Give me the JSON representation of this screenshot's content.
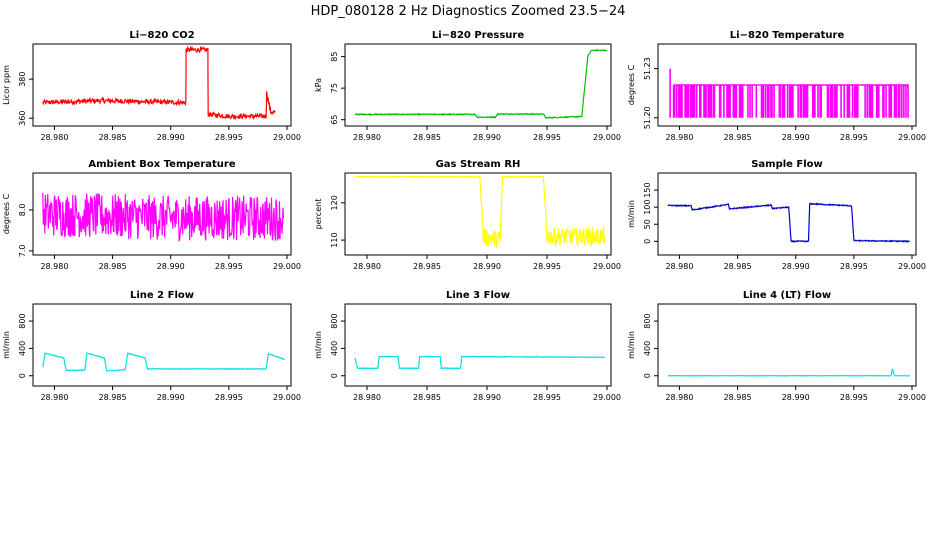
{
  "figure_title": "HDP_080128  2 Hz Diagnostics Zoomed 23.5−24",
  "chart_data": [
    {
      "type": "line",
      "title": "Li−820 CO2",
      "ylabel": "Licor ppm",
      "color": "#ff0000",
      "ylim": [
        356,
        398
      ],
      "yticks": [
        360,
        380
      ],
      "ytick_labels": [
        "360",
        "380"
      ],
      "xlim": [
        28.9785,
        29.0
      ],
      "xticks": [
        28.98,
        28.985,
        28.99,
        28.995,
        29.0
      ],
      "xtick_labels": [
        "28.980",
        "28.985",
        "28.990",
        "28.995",
        "29.000"
      ],
      "series": [
        {
          "x": [
            28.979,
            28.984,
            28.9913,
            28.99132,
            28.9932,
            28.99322,
            28.995,
            28.9982,
            28.99825,
            28.9986,
            28.999
          ],
          "y": [
            368,
            369,
            368,
            395,
            395,
            362,
            361,
            361,
            373,
            363,
            363
          ]
        }
      ]
    },
    {
      "type": "line",
      "title": "Li−820 Pressure",
      "ylabel": "kPa",
      "color": "#00c000",
      "ylim": [
        63,
        89
      ],
      "yticks": [
        65,
        75,
        85
      ],
      "ytick_labels": [
        "65",
        "75",
        "85"
      ],
      "xlim": [
        28.9785,
        29.0
      ],
      "xticks": [
        28.98,
        28.985,
        28.99,
        28.995,
        29.0
      ],
      "xtick_labels": [
        "28.980",
        "28.985",
        "28.990",
        "28.995",
        "29.000"
      ],
      "series": [
        {
          "x": [
            28.979,
            28.989,
            28.9892,
            28.9907,
            28.9909,
            28.9947,
            28.9949,
            28.9979,
            28.9984,
            28.9987,
            29.0
          ],
          "y": [
            66.7,
            66.7,
            65.8,
            65.8,
            66.8,
            66.8,
            65.6,
            66,
            85,
            87,
            87
          ]
        }
      ]
    },
    {
      "type": "line",
      "title": "Li−820 Temperature",
      "ylabel": "degrees C",
      "color": "#ff00ff",
      "ylim": [
        51.195,
        51.245
      ],
      "yticks": [
        51.2,
        51.23
      ],
      "ytick_labels": [
        "51.20",
        "51.23"
      ],
      "xlim": [
        28.9785,
        29.0
      ],
      "xticks": [
        28.98,
        28.985,
        28.99,
        28.995,
        29.0
      ],
      "xtick_labels": [
        "28.980",
        "28.985",
        "28.990",
        "28.995",
        "29.000"
      ],
      "series": [
        {
          "x": [
            28.979,
            28.9792,
            28.9795,
            28.9997
          ],
          "y": [
            51.23,
            51.2,
            51.22,
            51.2
          ]
        }
      ]
    },
    {
      "type": "line",
      "title": "Ambient Box Temperature",
      "ylabel": "degrees C",
      "color": "#ff00ff",
      "ylim": [
        6.9,
        8.9
      ],
      "yticks": [
        7.0,
        8.0
      ],
      "ytick_labels": [
        "7.0",
        "8.0"
      ],
      "xlim": [
        28.9785,
        29.0
      ],
      "xticks": [
        28.98,
        28.985,
        28.99,
        28.995,
        29.0
      ],
      "xtick_labels": [
        "28.980",
        "28.985",
        "28.990",
        "28.995",
        "29.000"
      ],
      "series": [
        {
          "x": [
            28.979,
            28.99,
            28.9997
          ],
          "y": [
            7.9,
            7.8,
            7.8
          ]
        }
      ]
    },
    {
      "type": "line",
      "title": "Gas Stream RH",
      "ylabel": "percent",
      "color": "#ffff00",
      "ylim": [
        106,
        128
      ],
      "yticks": [
        110,
        120
      ],
      "ytick_labels": [
        "110",
        "120"
      ],
      "xlim": [
        28.9785,
        29.0
      ],
      "xticks": [
        28.98,
        28.985,
        28.99,
        28.995,
        29.0
      ],
      "xtick_labels": [
        "28.980",
        "28.985",
        "28.990",
        "28.995",
        "29.000"
      ],
      "series": [
        {
          "x": [
            28.979,
            28.9894,
            28.9897,
            28.9911,
            28.9913,
            28.9947,
            28.995,
            28.9998
          ],
          "y": [
            127,
            127,
            111,
            110,
            127,
            127,
            111,
            111
          ]
        }
      ]
    },
    {
      "type": "line",
      "title": "Sample Flow",
      "ylabel": "ml/min",
      "color": "#0000cd",
      "ylim": [
        -40,
        200
      ],
      "yticks": [
        0,
        50,
        100,
        150
      ],
      "ytick_labels": [
        "0",
        "50",
        "100",
        "150"
      ],
      "xlim": [
        28.9785,
        29.0
      ],
      "xticks": [
        28.98,
        28.985,
        28.99,
        28.995,
        29.0
      ],
      "xtick_labels": [
        "28.980",
        "28.985",
        "28.990",
        "28.995",
        "29.000"
      ],
      "series": [
        {
          "x": [
            28.979,
            28.981,
            28.9811,
            28.9842,
            28.9843,
            28.9879,
            28.988,
            28.9894,
            28.9896,
            28.9911,
            28.9912,
            28.9948,
            28.995,
            28.9998
          ],
          "y": [
            105,
            104,
            92,
            108,
            95,
            106,
            96,
            100,
            0,
            0,
            110,
            104,
            2,
            0
          ]
        }
      ]
    },
    {
      "type": "line",
      "title": "Line 2 Flow",
      "ylabel": "ml/min",
      "color": "#00e0e0",
      "ylim": [
        -150,
        1050
      ],
      "yticks": [
        0,
        400,
        800
      ],
      "ytick_labels": [
        "0",
        "400",
        "800"
      ],
      "xlim": [
        28.9785,
        29.0
      ],
      "xticks": [
        28.98,
        28.985,
        28.99,
        28.995,
        29.0
      ],
      "xtick_labels": [
        "28.980",
        "28.985",
        "28.990",
        "28.995",
        "29.000"
      ],
      "series": [
        {
          "x": [
            28.979,
            28.9792,
            28.9808,
            28.981,
            28.9826,
            28.9828,
            28.9843,
            28.9845,
            28.9861,
            28.9863,
            28.9878,
            28.988,
            28.9982,
            28.9984,
            28.9998
          ],
          "y": [
            120,
            330,
            260,
            80,
            80,
            330,
            260,
            70,
            90,
            330,
            260,
            100,
            100,
            320,
            240
          ]
        }
      ]
    },
    {
      "type": "line",
      "title": "Line 3 Flow",
      "ylabel": "ml/min",
      "color": "#00e0e0",
      "ylim": [
        -150,
        1050
      ],
      "yticks": [
        0,
        400,
        800
      ],
      "ytick_labels": [
        "0",
        "400",
        "800"
      ],
      "xlim": [
        28.9785,
        29.0
      ],
      "xticks": [
        28.98,
        28.985,
        28.99,
        28.995,
        29.0
      ],
      "xtick_labels": [
        "28.980",
        "28.985",
        "28.990",
        "28.995",
        "29.000"
      ],
      "series": [
        {
          "x": [
            28.979,
            28.9792,
            28.9809,
            28.981,
            28.9826,
            28.9827,
            28.9843,
            28.9844,
            28.9861,
            28.9862,
            28.9878,
            28.9879,
            28.9998
          ],
          "y": [
            260,
            110,
            110,
            280,
            280,
            110,
            110,
            280,
            280,
            110,
            110,
            280,
            270
          ]
        }
      ]
    },
    {
      "type": "line",
      "title": "Line 4 (LT) Flow",
      "ylabel": "ml/min",
      "color": "#00e0e0",
      "ylim": [
        -150,
        1050
      ],
      "yticks": [
        0,
        400,
        800
      ],
      "ytick_labels": [
        "0",
        "400",
        "800"
      ],
      "xlim": [
        28.9785,
        29.0
      ],
      "xticks": [
        28.98,
        28.985,
        28.99,
        28.995,
        29.0
      ],
      "xtick_labels": [
        "28.980",
        "28.985",
        "28.990",
        "28.995",
        "29.000"
      ],
      "series": [
        {
          "x": [
            28.979,
            28.9982,
            28.9983,
            28.9985,
            28.9998
          ],
          "y": [
            0,
            0,
            100,
            0,
            0
          ]
        }
      ]
    }
  ]
}
